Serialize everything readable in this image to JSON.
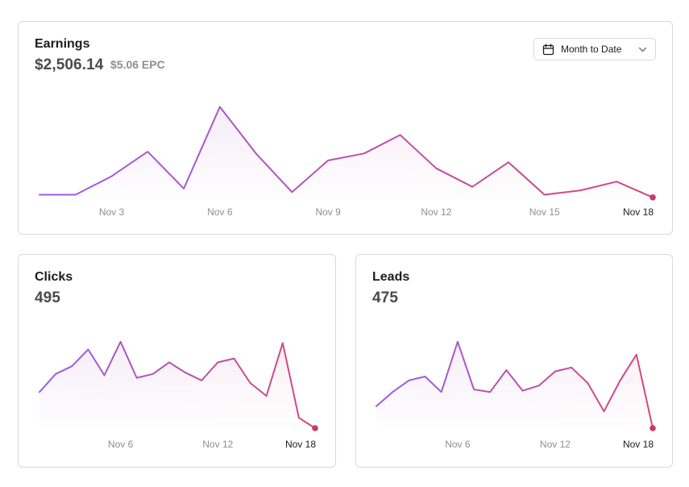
{
  "colors": {
    "line_start": "#9b5de5",
    "line_end": "#d6477a",
    "dot": "#c73a6b",
    "fill_start": "#e7dcf7",
    "fill_end": "#f7dde6"
  },
  "earnings": {
    "title": "Earnings",
    "value": "$2,506.14",
    "epc": "$5.06 EPC",
    "date_range": "Month to Date",
    "date_icon": "calendar-icon",
    "dropdown_icon": "chevron-down-icon"
  },
  "clicks": {
    "title": "Clicks",
    "value": "495"
  },
  "leads": {
    "title": "Leads",
    "value": "475"
  },
  "chart_data": [
    {
      "id": "earnings",
      "type": "area",
      "title": "Earnings",
      "x": [
        1,
        2,
        3,
        4,
        5,
        6,
        7,
        8,
        9,
        10,
        11,
        12,
        13,
        14,
        15,
        16,
        17,
        18
      ],
      "values": [
        5,
        5,
        26,
        54,
        12,
        105,
        52,
        8,
        44,
        52,
        73,
        35,
        14,
        42,
        5,
        10,
        20,
        2
      ],
      "ylim": [
        0,
        110
      ],
      "tick_labels": [
        "Nov 3",
        "Nov 6",
        "Nov 9",
        "Nov 12",
        "Nov 15",
        "Nov 18"
      ],
      "tick_x": [
        3,
        6,
        9,
        12,
        15,
        18
      ]
    },
    {
      "id": "clicks",
      "type": "area",
      "title": "Clicks",
      "x": [
        1,
        2,
        3,
        4,
        5,
        6,
        7,
        8,
        9,
        10,
        11,
        12,
        13,
        14,
        15,
        16,
        17,
        18
      ],
      "values": [
        28,
        42,
        48,
        61,
        41,
        67,
        39,
        42,
        51,
        43,
        37,
        51,
        54,
        35,
        25,
        66,
        8,
        0
      ],
      "ylim": [
        0,
        75
      ],
      "tick_labels": [
        "Nov 6",
        "Nov 12",
        "Nov 18"
      ],
      "tick_x": [
        6,
        12,
        18
      ]
    },
    {
      "id": "leads",
      "type": "area",
      "title": "Leads",
      "x": [
        1,
        2,
        3,
        4,
        5,
        6,
        7,
        8,
        9,
        10,
        11,
        12,
        13,
        14,
        15,
        16,
        17,
        18
      ],
      "values": [
        17,
        28,
        37,
        40,
        28,
        67,
        30,
        28,
        45,
        29,
        33,
        44,
        47,
        35,
        13,
        37,
        57,
        0
      ],
      "ylim": [
        0,
        75
      ],
      "tick_labels": [
        "Nov 6",
        "Nov 12",
        "Nov 18"
      ],
      "tick_x": [
        6,
        12,
        18
      ]
    }
  ]
}
